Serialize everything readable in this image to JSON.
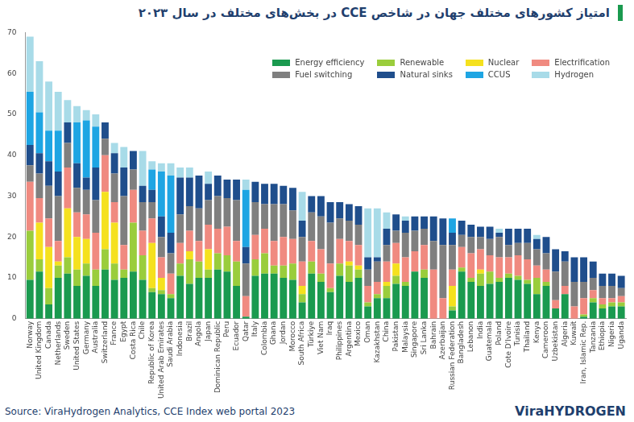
{
  "chart_data": {
    "type": "bar",
    "stacked": true,
    "grid": false,
    "legend": "upper right",
    "title": "امتیاز کشورهای مختلف جهان در شاخص CCE در بخش‌های مختلف در سال ۲۰۲۳",
    "source": "Source: ViraHydrogen Analytics, CCE Index web portal 2023",
    "logo": "ViraHYDROGEN",
    "categories": [
      "Norway",
      "United Kingdom",
      "Canada",
      "Netherlands",
      "Sweden",
      "United States",
      "Germany",
      "Australia",
      "Switzerland",
      "France",
      "Egypt",
      "Costa Rica",
      "Chile",
      "Republic of Korea",
      "United Arab Emirates",
      "Saudi Arabia",
      "Indonesia",
      "Brazil",
      "Angola",
      "Japan",
      "Dominican Republic",
      "Peru",
      "Ecuador",
      "Qatar",
      "Italy",
      "Colombia",
      "Ghana",
      "Jordan",
      "Morocco",
      "South Africa",
      "Türkiye",
      "Viet Nam",
      "Iraq",
      "Philippines",
      "Argentina",
      "Mexico",
      "Oman",
      "Kazakhstan",
      "China",
      "Pakistan",
      "Malaysia",
      "Singapore",
      "Sri Lanka",
      "Bahrain",
      "Azerbaijan",
      "Russian Federation",
      "Bangladesh",
      "Lebanon",
      "India",
      "Guatemala",
      "Poland",
      "Cote D'Ivoire",
      "Tunisia",
      "Thailand",
      "Kenya",
      "Cameroon",
      "Uzbekistan",
      "Algeria",
      "Kuwait",
      "Iran, Islamic Rep.",
      "Tanzania",
      "Ethiopia",
      "Nigeria",
      "Uganda"
    ],
    "ylim": [
      0,
      70
    ],
    "yticks": [
      0,
      10,
      20,
      30,
      40,
      50,
      60,
      70
    ],
    "series": [
      {
        "name": "Energy efficiency",
        "color": "#1a9a4f",
        "values": [
          9.5,
          11.5,
          3.5,
          10,
          11,
          8,
          10.5,
          8,
          12,
          9.5,
          10,
          11.5,
          9.5,
          6.5,
          6,
          5,
          10.5,
          8.5,
          10,
          10,
          12,
          11.5,
          8,
          0.5,
          10.5,
          11,
          11,
          10,
          9.5,
          4,
          11,
          9,
          6.5,
          10.5,
          9,
          10,
          3,
          5,
          5,
          8.5,
          8,
          11.5,
          10,
          0,
          0,
          2,
          11.5,
          9,
          8,
          8.5,
          9,
          10,
          9.5,
          8.5,
          6,
          8,
          2.5,
          6,
          0,
          0.5,
          4,
          2.5,
          3,
          3
        ]
      },
      {
        "name": "Renewable",
        "color": "#9acd3c",
        "values": [
          12,
          3,
          4,
          3,
          4,
          4,
          3,
          4,
          5,
          4,
          2,
          12,
          6,
          1,
          1,
          1,
          3,
          6,
          4,
          2,
          4,
          4,
          6,
          0,
          4,
          5,
          2,
          3,
          4,
          2,
          3,
          2,
          1,
          3,
          4,
          2,
          1,
          1,
          3,
          2,
          1,
          0,
          2,
          0,
          0,
          1,
          1,
          1,
          3,
          3,
          1,
          1,
          1,
          1,
          4,
          1,
          0,
          0,
          0,
          0.5,
          1,
          1,
          1,
          1
        ]
      },
      {
        "name": "Nuclear",
        "color": "#f5e11e",
        "values": [
          0,
          9,
          10,
          1,
          12,
          8,
          6,
          0,
          14,
          10,
          0,
          0,
          0,
          11,
          3,
          0,
          0,
          2,
          0,
          5,
          0,
          0,
          0,
          0,
          0,
          0,
          0,
          0,
          0,
          2,
          0,
          0,
          0,
          0,
          1,
          1,
          0,
          0,
          1,
          3,
          0,
          0,
          0,
          0,
          0,
          5,
          0,
          0,
          1,
          0,
          0,
          0,
          0,
          0,
          0,
          0,
          0,
          0,
          0,
          0,
          0,
          0,
          0,
          0
        ]
      },
      {
        "name": "Electrification",
        "color": "#f08a80",
        "values": [
          12,
          6,
          7,
          5,
          10,
          6,
          6,
          9,
          9,
          5,
          6,
          8,
          6,
          6,
          5,
          5,
          5,
          5,
          5,
          6,
          6,
          7,
          5,
          5,
          6,
          6,
          6,
          7,
          6,
          6,
          5,
          6,
          6,
          6,
          5,
          5,
          4,
          3,
          5,
          5,
          6,
          5,
          6,
          12,
          5,
          4,
          5,
          6,
          5,
          4,
          5,
          4,
          5,
          5,
          3,
          3,
          2,
          2,
          3,
          4,
          2,
          1.5,
          1,
          1.5
        ]
      },
      {
        "name": "Fuel switching",
        "color": "#7f7f7f",
        "values": [
          4,
          6,
          8,
          11,
          6,
          6,
          6,
          8,
          4,
          7,
          12,
          5,
          7,
          4,
          5,
          5,
          7,
          6,
          8,
          6,
          8,
          7,
          10,
          8,
          8,
          6,
          9,
          8,
          7,
          6,
          7,
          8,
          10,
          5,
          5,
          5,
          4,
          5,
          4,
          3,
          6,
          5,
          4,
          7,
          13,
          6,
          3,
          4,
          3,
          4,
          5,
          3,
          3,
          4,
          4,
          4,
          7,
          6,
          6,
          4,
          3,
          3,
          3,
          2
        ]
      },
      {
        "name": "Natural sinks",
        "color": "#1f4e8c",
        "values": [
          5,
          5,
          6,
          6,
          5,
          6,
          3,
          8,
          4,
          5,
          7,
          4.5,
          4,
          3,
          5,
          5,
          9,
          7,
          8,
          4,
          5,
          4.5,
          5,
          4,
          5,
          5,
          5,
          4.5,
          5.5,
          4,
          4,
          5,
          5,
          4,
          4,
          4.5,
          3,
          1,
          4,
          4,
          3,
          3.5,
          3,
          6,
          6.5,
          3,
          3.5,
          3,
          2.5,
          3,
          1,
          4,
          3.5,
          3.5,
          2.5,
          4,
          5.5,
          2.5,
          6,
          6,
          4,
          3,
          3,
          3
        ]
      },
      {
        "name": "CCUS",
        "color": "#1ea5e3",
        "values": [
          13,
          10,
          7.5,
          10,
          0,
          10,
          14,
          10,
          0,
          0,
          0,
          0,
          0,
          5,
          11,
          14,
          0,
          0,
          0,
          0,
          0,
          0,
          0,
          14,
          0,
          0,
          0,
          0,
          0,
          0,
          0,
          0,
          0,
          0,
          0,
          0,
          0,
          0,
          0,
          0,
          0,
          0,
          0,
          0,
          0,
          3.5,
          0,
          0,
          0,
          0,
          0,
          0,
          0,
          0,
          0,
          0,
          0,
          0,
          0,
          0,
          0,
          0,
          0,
          0
        ]
      },
      {
        "name": "Hydrogen",
        "color": "#a8dbe8",
        "values": [
          13.5,
          12.5,
          12,
          9.5,
          5.5,
          4,
          2.5,
          3,
          0,
          2.5,
          5,
          0,
          8.5,
          2,
          2,
          3,
          2.5,
          2.5,
          0,
          3,
          0,
          0,
          0,
          2.5,
          0,
          0,
          0,
          0,
          0,
          7,
          0,
          0,
          0,
          0,
          0,
          0,
          12,
          12,
          4,
          0,
          1,
          0,
          0,
          0,
          0,
          0,
          0,
          0,
          0,
          0,
          1,
          0,
          0,
          0,
          1,
          0,
          0,
          0,
          0,
          0,
          0,
          0,
          0,
          0
        ]
      }
    ]
  }
}
